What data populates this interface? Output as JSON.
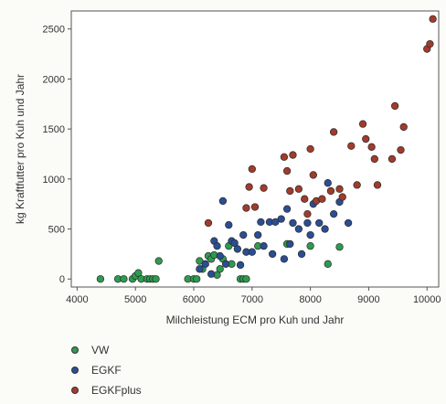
{
  "chart_data": {
    "type": "scatter",
    "title": "",
    "xlabel": "Milchleistung ECM pro Kuh und Jahr",
    "ylabel": "kg Kraftfutter pro Kuh und Jahr",
    "xlim": [
      3900,
      10200
    ],
    "ylim": [
      -80,
      2680
    ],
    "xticks": [
      4000,
      5000,
      6000,
      7000,
      8000,
      9000,
      10000
    ],
    "yticks": [
      0,
      500,
      1000,
      1500,
      2000,
      2500
    ],
    "grid": false,
    "legend_position": "bottom-left",
    "series": [
      {
        "name": "VW",
        "color": "#2e9b4f",
        "points": [
          [
            4400,
            0
          ],
          [
            4700,
            0
          ],
          [
            4800,
            0
          ],
          [
            4950,
            0
          ],
          [
            5000,
            30
          ],
          [
            5050,
            60
          ],
          [
            5100,
            0
          ],
          [
            5200,
            0
          ],
          [
            5250,
            0
          ],
          [
            5300,
            0
          ],
          [
            5350,
            0
          ],
          [
            5400,
            180
          ],
          [
            5900,
            0
          ],
          [
            6000,
            0
          ],
          [
            6050,
            0
          ],
          [
            6100,
            180
          ],
          [
            6150,
            100
          ],
          [
            6250,
            230
          ],
          [
            6300,
            200
          ],
          [
            6350,
            240
          ],
          [
            6400,
            40
          ],
          [
            6450,
            100
          ],
          [
            6500,
            200
          ],
          [
            6600,
            330
          ],
          [
            6650,
            150
          ],
          [
            6800,
            0
          ],
          [
            6850,
            0
          ],
          [
            6900,
            0
          ],
          [
            7100,
            330
          ],
          [
            7600,
            350
          ],
          [
            8000,
            330
          ],
          [
            8300,
            150
          ],
          [
            8500,
            320
          ]
        ]
      },
      {
        "name": "EGKF",
        "color": "#2a4e93",
        "points": [
          [
            6100,
            100
          ],
          [
            6200,
            150
          ],
          [
            6300,
            50
          ],
          [
            6350,
            380
          ],
          [
            6400,
            330
          ],
          [
            6450,
            230
          ],
          [
            6500,
            780
          ],
          [
            6550,
            150
          ],
          [
            6600,
            540
          ],
          [
            6650,
            380
          ],
          [
            6700,
            360
          ],
          [
            6750,
            300
          ],
          [
            6800,
            140
          ],
          [
            6850,
            440
          ],
          [
            6900,
            270
          ],
          [
            7000,
            270
          ],
          [
            7100,
            440
          ],
          [
            7150,
            570
          ],
          [
            7200,
            330
          ],
          [
            7300,
            570
          ],
          [
            7350,
            250
          ],
          [
            7400,
            570
          ],
          [
            7500,
            600
          ],
          [
            7550,
            200
          ],
          [
            7600,
            700
          ],
          [
            7650,
            350
          ],
          [
            7700,
            560
          ],
          [
            7800,
            500
          ],
          [
            7850,
            250
          ],
          [
            7950,
            560
          ],
          [
            8000,
            440
          ],
          [
            8050,
            750
          ],
          [
            8150,
            560
          ],
          [
            8250,
            500
          ],
          [
            8300,
            960
          ],
          [
            8400,
            650
          ],
          [
            8500,
            770
          ],
          [
            8650,
            560
          ]
        ]
      },
      {
        "name": "EGKFplus",
        "color": "#a13b2c",
        "points": [
          [
            6250,
            560
          ],
          [
            6900,
            710
          ],
          [
            6950,
            920
          ],
          [
            7000,
            1100
          ],
          [
            7050,
            720
          ],
          [
            7200,
            910
          ],
          [
            7550,
            1220
          ],
          [
            7600,
            1080
          ],
          [
            7650,
            880
          ],
          [
            7700,
            1240
          ],
          [
            7800,
            900
          ],
          [
            7900,
            800
          ],
          [
            7950,
            650
          ],
          [
            8000,
            1300
          ],
          [
            8050,
            1040
          ],
          [
            8100,
            780
          ],
          [
            8200,
            800
          ],
          [
            8350,
            880
          ],
          [
            8400,
            1470
          ],
          [
            8500,
            900
          ],
          [
            8550,
            820
          ],
          [
            8700,
            1330
          ],
          [
            8800,
            940
          ],
          [
            8900,
            1550
          ],
          [
            8950,
            1400
          ],
          [
            9050,
            1320
          ],
          [
            9100,
            1200
          ],
          [
            9150,
            940
          ],
          [
            9400,
            1200
          ],
          [
            9450,
            1730
          ],
          [
            9550,
            1290
          ],
          [
            9600,
            1520
          ],
          [
            10000,
            2300
          ],
          [
            10050,
            2350
          ],
          [
            10100,
            2600
          ]
        ]
      }
    ]
  }
}
